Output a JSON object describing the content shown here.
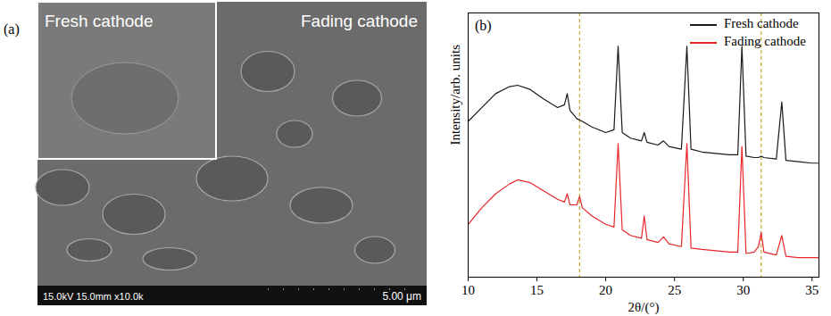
{
  "image_panel": {
    "label": "(a)",
    "inset_text": "Fresh cathode",
    "main_text": "Fading cathode",
    "info_text": "15.0kV 15.0mm x10.0k",
    "scale_text": "5.00 μm"
  },
  "chart_data": {
    "type": "line",
    "panel_label": "(b)",
    "x_label": "2θ/(°)",
    "y_label": "Intensity/arb. units",
    "x": [
      10,
      11,
      12,
      13,
      13.6,
      14.5,
      15.5,
      16.5,
      17.0,
      17.2,
      17.4,
      17.9,
      18.1,
      18.3,
      19,
      20,
      20.6,
      20.9,
      21.2,
      21.8,
      22.6,
      22.8,
      23.0,
      23.8,
      24.2,
      24.6,
      25.5,
      25.9,
      26.2,
      27,
      28,
      29,
      29.6,
      29.9,
      30.2,
      30.8,
      31.1,
      31.3,
      31.5,
      32.4,
      32.8,
      33.1,
      34,
      35,
      35.5
    ],
    "series": [
      {
        "name": "Fresh cathode",
        "color": "#1a1a1a",
        "values": [
          61,
          66,
          71,
          73.5,
          74,
          72.5,
          69,
          66,
          67,
          71,
          65,
          62,
          61.5,
          61,
          59,
          57,
          58,
          88,
          57,
          55,
          54,
          57,
          53.5,
          52.5,
          54,
          52,
          51,
          88,
          51,
          50,
          49.5,
          49,
          49,
          88,
          48.5,
          48,
          48,
          48.5,
          48,
          47.5,
          68,
          47,
          46.5,
          46,
          46
        ]
      },
      {
        "name": "Fading cathode",
        "color": "#e8262a",
        "values": [
          24,
          30,
          35,
          38.5,
          40,
          39,
          36,
          33,
          32,
          35,
          31,
          31,
          34,
          30,
          27,
          24,
          23,
          53,
          22,
          20,
          19,
          27,
          18.5,
          17.5,
          19.5,
          17,
          16,
          53,
          15.5,
          15,
          14.5,
          14,
          14,
          52,
          13.5,
          14,
          16,
          21,
          14,
          13,
          20,
          12.5,
          12,
          12,
          12
        ]
      }
    ],
    "reference_lines": {
      "values": [
        18.1,
        31.3
      ],
      "color": "#c9a227",
      "line_style": "dashed"
    },
    "xlim": [
      10,
      35.5
    ],
    "xticks": [
      10,
      15,
      20,
      25,
      30,
      35
    ],
    "ylim": [
      5,
      100
    ],
    "tick_labels": "x",
    "grid": false,
    "legend": "top-right"
  }
}
